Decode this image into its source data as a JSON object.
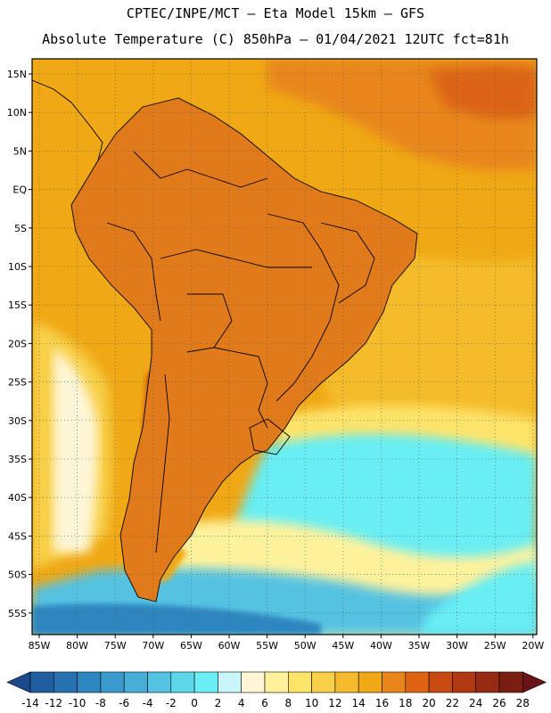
{
  "header": {
    "line1": "CPTEC/INPE/MCT –  Eta Model 15km – GFS",
    "line2": "Absolute Temperature (C) 850hPa – 01/04/2021 12UTC fct=81h"
  },
  "map": {
    "lat_labels": [
      "15N",
      "10N",
      "5N",
      "EQ",
      "5S",
      "10S",
      "15S",
      "20S",
      "25S",
      "30S",
      "35S",
      "40S",
      "45S",
      "50S",
      "55S"
    ],
    "lon_labels": [
      "85W",
      "80W",
      "75W",
      "70W",
      "65W",
      "60W",
      "55W",
      "50W",
      "45W",
      "40W",
      "35W",
      "30W",
      "25W",
      "20W"
    ],
    "colors": {
      "hot_dark": "#a0301a",
      "hot": "#c8501a",
      "warm_orange": "#e07a1a",
      "orange": "#f0a814",
      "yellow": "#f5c83c",
      "pale_yellow": "#fff0a0",
      "cyan": "#5ee6f0",
      "light_cyan": "#b8f6f8",
      "blue": "#3aa6d6",
      "dark_blue": "#2478b4",
      "border": "#000000"
    }
  },
  "colorbar": {
    "labels": [
      "-14",
      "-12",
      "-10",
      "-8",
      "-6",
      "-4",
      "-2",
      "0",
      "2",
      "4",
      "6",
      "8",
      "10",
      "12",
      "14",
      "16",
      "18",
      "20",
      "22",
      "24",
      "26",
      "28"
    ],
    "colors": [
      "#1b4a8c",
      "#205ea0",
      "#2672b0",
      "#2e86c0",
      "#3a9ace",
      "#48aed8",
      "#54c2e2",
      "#5ed6ea",
      "#68eef4",
      "#c8f6fa",
      "#fff6d8",
      "#fff29c",
      "#ffe46a",
      "#f8d04a",
      "#f4bc2c",
      "#f0a814",
      "#e8861a",
      "#dc6414",
      "#c84a12",
      "#b03812",
      "#962a12",
      "#7a1e12",
      "#6a1218"
    ]
  }
}
